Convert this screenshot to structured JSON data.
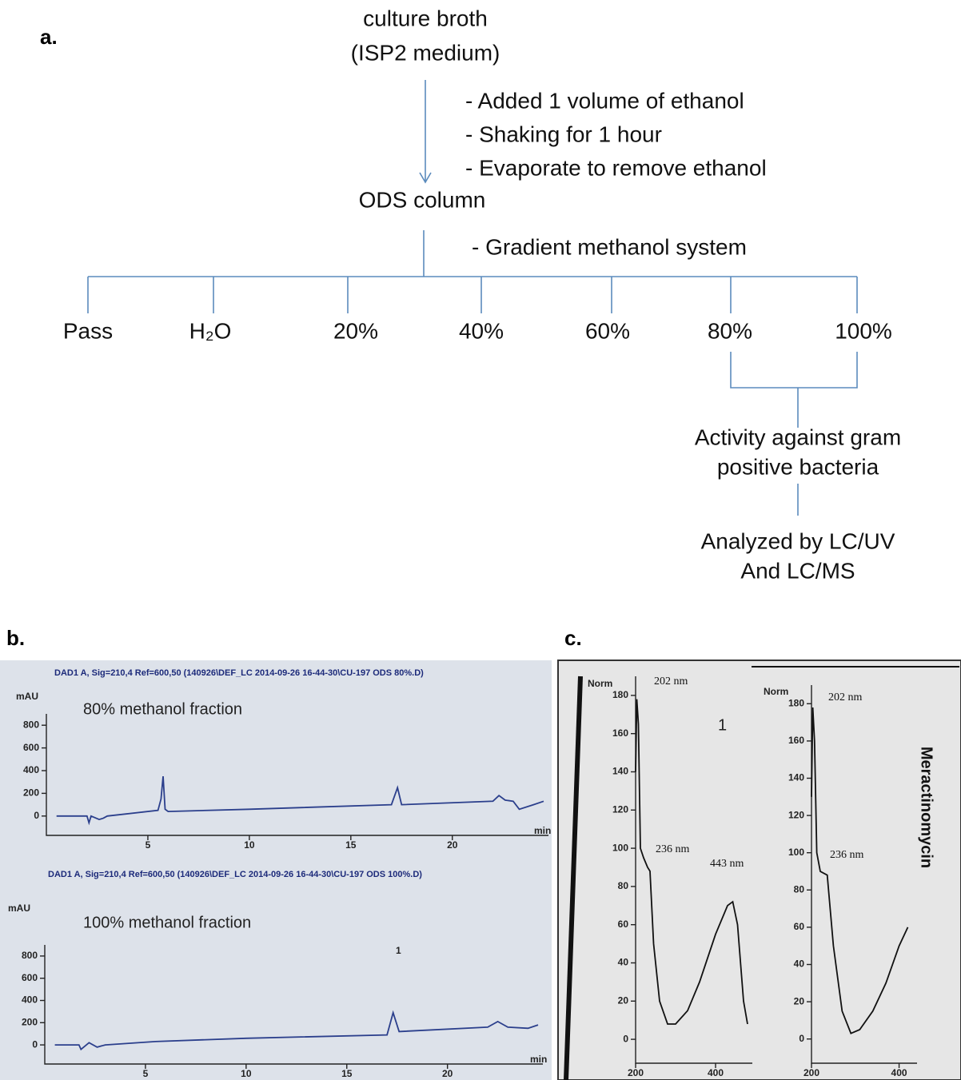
{
  "diagram": {
    "panel_a_label": "a.",
    "source": [
      "culture broth",
      "(ISP2 medium)"
    ],
    "steps_1": [
      "- Added 1 volume of ethanol",
      "- Shaking for 1 hour",
      "- Evaporate to remove ethanol"
    ],
    "column": "ODS column",
    "steps_2": "- Gradient methanol system",
    "fractions": [
      "Pass",
      "H₂O",
      "20%",
      "40%",
      "60%",
      "80%",
      "100%"
    ],
    "result": [
      "Activity against gram",
      "positive bacteria"
    ],
    "analysis": [
      "Analyzed by LC/UV",
      "And LC/MS"
    ],
    "panel_b_label": "b.",
    "panel_c_label": "c."
  },
  "chart_data": [
    {
      "type": "line",
      "header": "DAD1 A, Sig=210,4 Ref=600,50 (140926\\DEF_LC 2014-09-26 16-44-30\\CU-197 ODS 80%.D)",
      "y_label": "mAU",
      "x_label": "min",
      "annotations": [
        "80% methanol fraction"
      ],
      "color": "#2b3f8c",
      "xlim": [
        0,
        24.5
      ],
      "ylim": [
        -100,
        900
      ],
      "xticks": [
        5,
        10,
        15,
        20
      ],
      "yticks": [
        0,
        200,
        400,
        600,
        800
      ],
      "x": [
        0.5,
        2,
        2.1,
        2.2,
        2.6,
        2.8,
        3,
        5.5,
        5.65,
        5.75,
        5.85,
        6,
        10,
        17,
        17.3,
        17.5,
        22,
        22.3,
        22.6,
        23,
        23.3,
        24,
        24.5
      ],
      "values": [
        0,
        0,
        -60,
        0,
        -30,
        -20,
        0,
        50,
        150,
        350,
        60,
        40,
        60,
        100,
        250,
        100,
        130,
        180,
        140,
        130,
        60,
        100,
        130
      ]
    },
    {
      "type": "line",
      "header": "DAD1 A, Sig=210,4 Ref=600,50 (140926\\DEF_LC 2014-09-26 16-44-30\\CU-197 ODS 100%.D)",
      "y_label": "mAU",
      "x_label": "min",
      "annotations": [
        "100% methanol fraction",
        "1"
      ],
      "color": "#2b3f8c",
      "xlim": [
        0,
        24.5
      ],
      "ylim": [
        -100,
        900
      ],
      "xticks": [
        5,
        10,
        15,
        20
      ],
      "yticks": [
        0,
        200,
        400,
        600,
        800
      ],
      "x": [
        0.5,
        1.7,
        1.8,
        2.2,
        2.6,
        3,
        5.5,
        10,
        17,
        17.3,
        17.6,
        22,
        22.5,
        23,
        24,
        24.5
      ],
      "values": [
        0,
        0,
        -40,
        20,
        -20,
        0,
        30,
        60,
        90,
        290,
        120,
        160,
        210,
        160,
        150,
        180
      ]
    },
    {
      "type": "line",
      "y_label": "Norm",
      "annotations": [
        "202 nm",
        "236 nm",
        "443 nm",
        "1"
      ],
      "color": "#111",
      "xlim": [
        200,
        480
      ],
      "ylim": [
        -10,
        190
      ],
      "xticks": [
        200,
        400
      ],
      "yticks": [
        0,
        20,
        40,
        60,
        80,
        100,
        120,
        140,
        160,
        180
      ],
      "x": [
        200,
        203,
        207,
        212,
        220,
        230,
        236,
        245,
        260,
        280,
        300,
        330,
        360,
        400,
        430,
        443,
        455,
        470,
        480
      ],
      "values": [
        140,
        178,
        165,
        100,
        95,
        90,
        88,
        50,
        20,
        8,
        8,
        15,
        30,
        55,
        70,
        72,
        60,
        20,
        8
      ]
    },
    {
      "type": "line",
      "title": "Meractinomycin",
      "y_label": "Norm",
      "annotations": [
        "202 nm",
        "236 nm"
      ],
      "color": "#111",
      "xlim": [
        200,
        430
      ],
      "ylim": [
        -10,
        190
      ],
      "xticks": [
        200,
        400
      ],
      "yticks": [
        0,
        20,
        40,
        60,
        80,
        100,
        120,
        140,
        160,
        180
      ],
      "x": [
        200,
        203,
        207,
        212,
        220,
        236,
        250,
        270,
        290,
        310,
        340,
        370,
        400,
        420
      ],
      "values": [
        130,
        178,
        160,
        100,
        90,
        88,
        50,
        15,
        3,
        5,
        15,
        30,
        50,
        60
      ]
    }
  ]
}
